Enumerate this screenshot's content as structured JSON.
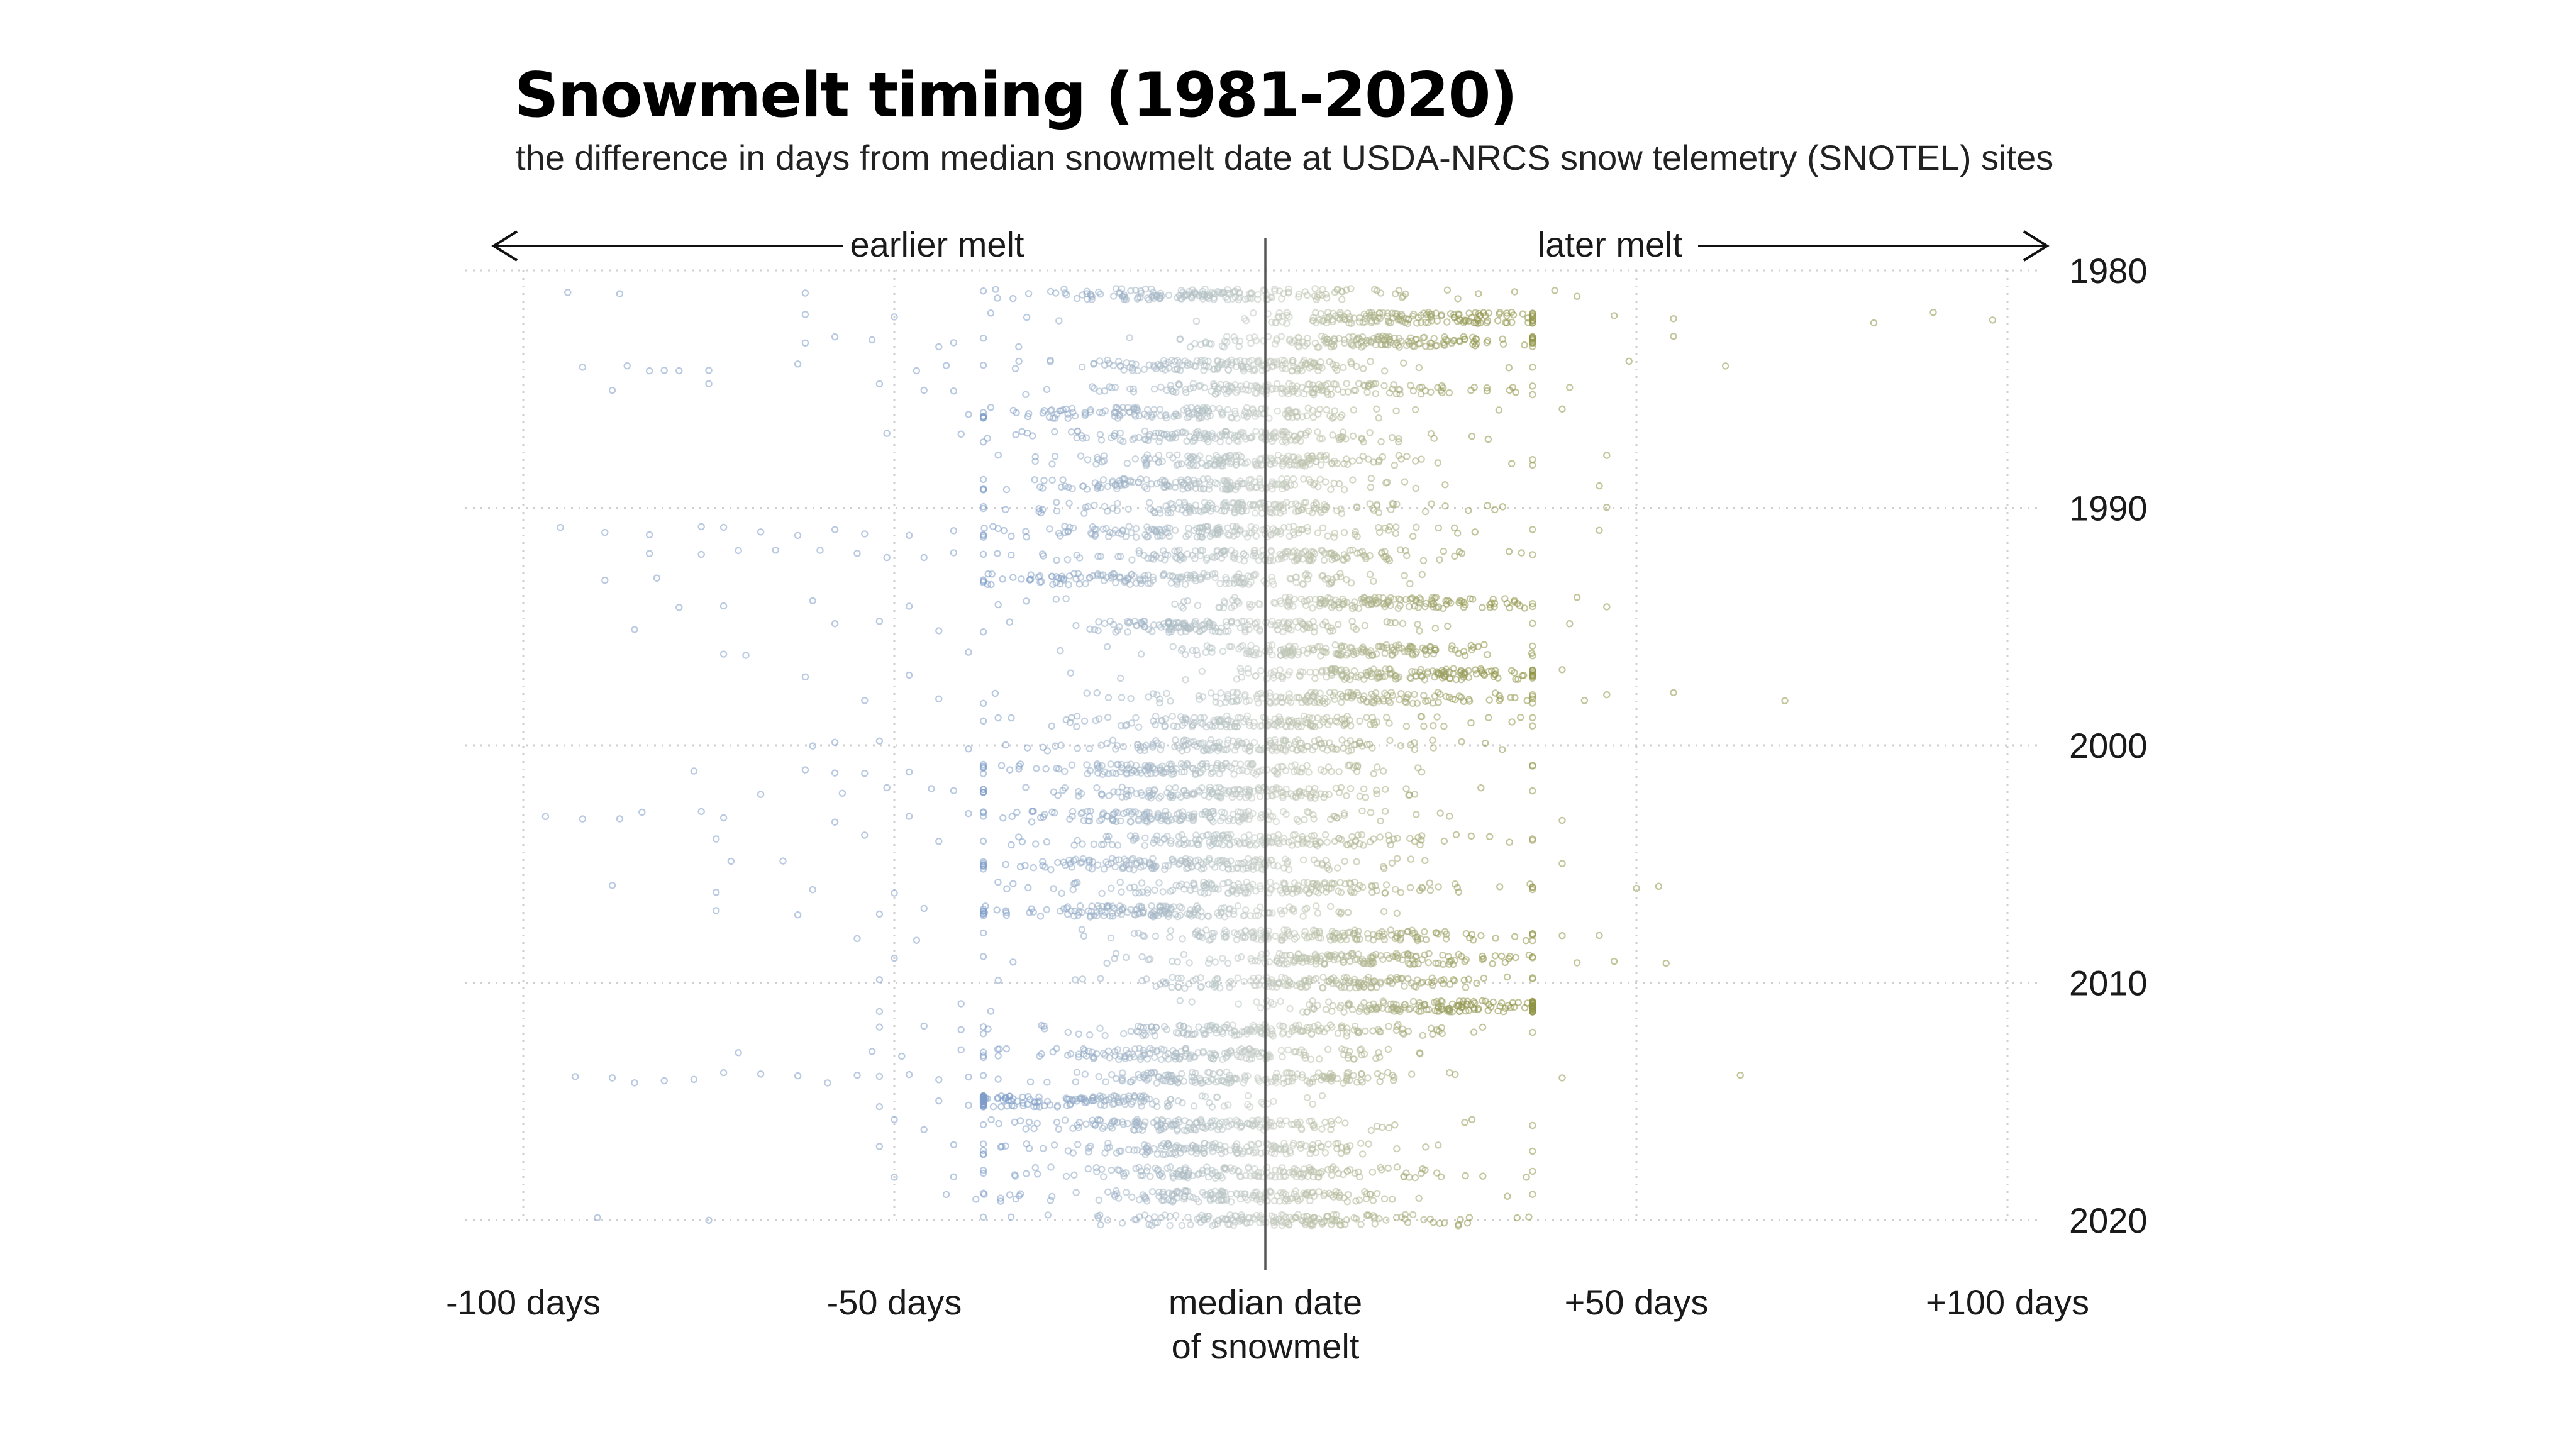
{
  "chart_data": {
    "type": "scatter",
    "title": "Snowmelt timing (1981-2020)",
    "subtitle": "the difference in days from median snowmelt date at USDA-NRCS snow telemetry (SNOTEL) sites",
    "x_tick_labels": [
      "-100 days",
      "-50 days",
      "median date of snowmelt",
      "+50 days",
      "+100 days"
    ],
    "x_ticks": [
      -100,
      -50,
      0,
      50,
      100
    ],
    "xlim": [
      -100,
      100
    ],
    "y_tick_labels": [
      "1980",
      "1990",
      "2000",
      "2010",
      "2020"
    ],
    "y_ticks": [
      1980,
      1990,
      2000,
      2010,
      2020
    ],
    "ylim": [
      1980,
      2020
    ],
    "grid": true,
    "annotations": {
      "earlier": "earlier melt",
      "later": "later melt"
    },
    "colors": {
      "earlier": "#7d9cc8",
      "median": "#c6cdc4",
      "later": "#8f9346",
      "median_line": "#555555",
      "grid": "#cfcfcf"
    },
    "series": [
      {
        "name": "",
        "years": [
          1981,
          1982,
          1983,
          1984,
          1985,
          1986,
          1987,
          1988,
          1989,
          1990,
          1991,
          1992,
          1993,
          1994,
          1995,
          1996,
          1997,
          1998,
          1999,
          2000,
          2001,
          2002,
          2003,
          2004,
          2005,
          2006,
          2007,
          2008,
          2009,
          2010,
          2011,
          2012,
          2013,
          2014,
          2015,
          2016,
          2017,
          2018,
          2019,
          2020
        ],
        "center_days": [
          -6,
          18,
          14,
          -4,
          2,
          -10,
          -5,
          -3,
          -8,
          -4,
          -8,
          -2,
          -12,
          12,
          -5,
          10,
          16,
          8,
          2,
          -2,
          -10,
          -4,
          -12,
          -1,
          -8,
          0,
          -14,
          6,
          10,
          8,
          22,
          -2,
          -8,
          -4,
          -24,
          -10,
          -6,
          -2,
          -2,
          2
        ],
        "outliers": [
          {
            "year": 1981,
            "days": -94
          },
          {
            "year": 1981,
            "days": -87
          },
          {
            "year": 1981,
            "days": -62
          },
          {
            "year": 1981,
            "days": -34
          },
          {
            "year": 1981,
            "days": -27
          },
          {
            "year": 1981,
            "days": -24
          },
          {
            "year": 1981,
            "days": 39
          },
          {
            "year": 1981,
            "days": 42
          },
          {
            "year": 1982,
            "days": -62
          },
          {
            "year": 1982,
            "days": -50
          },
          {
            "year": 1982,
            "days": -37
          },
          {
            "year": 1982,
            "days": 47
          },
          {
            "year": 1982,
            "days": 55
          },
          {
            "year": 1982,
            "days": 82
          },
          {
            "year": 1982,
            "days": 90
          },
          {
            "year": 1982,
            "days": 98
          },
          {
            "year": 1983,
            "days": -62
          },
          {
            "year": 1983,
            "days": -58
          },
          {
            "year": 1983,
            "days": -53
          },
          {
            "year": 1983,
            "days": -44
          },
          {
            "year": 1983,
            "days": -42
          },
          {
            "year": 1983,
            "days": -38
          },
          {
            "year": 1983,
            "days": 55
          },
          {
            "year": 1984,
            "days": -92
          },
          {
            "year": 1984,
            "days": -86
          },
          {
            "year": 1984,
            "days": -83
          },
          {
            "year": 1984,
            "days": -81
          },
          {
            "year": 1984,
            "days": -79
          },
          {
            "year": 1984,
            "days": -75
          },
          {
            "year": 1984,
            "days": -63
          },
          {
            "year": 1984,
            "days": -47
          },
          {
            "year": 1984,
            "days": -43
          },
          {
            "year": 1984,
            "days": 49
          },
          {
            "year": 1984,
            "days": 62
          },
          {
            "year": 1985,
            "days": -88
          },
          {
            "year": 1985,
            "days": -75
          },
          {
            "year": 1985,
            "days": -52
          },
          {
            "year": 1985,
            "days": -46
          },
          {
            "year": 1985,
            "days": -42
          },
          {
            "year": 1985,
            "days": 41
          },
          {
            "year": 1986,
            "days": -40
          },
          {
            "year": 1986,
            "days": -37
          },
          {
            "year": 1986,
            "days": -32
          },
          {
            "year": 1986,
            "days": 40
          },
          {
            "year": 1987,
            "days": -51
          },
          {
            "year": 1987,
            "days": -41
          },
          {
            "year": 1988,
            "days": -36
          },
          {
            "year": 1988,
            "days": -31
          },
          {
            "year": 1988,
            "days": 46
          },
          {
            "year": 1989,
            "days": -30
          },
          {
            "year": 1989,
            "days": -27
          },
          {
            "year": 1989,
            "days": 45
          },
          {
            "year": 1990,
            "days": -38
          },
          {
            "year": 1990,
            "days": -30
          },
          {
            "year": 1990,
            "days": 46
          },
          {
            "year": 1991,
            "days": -95
          },
          {
            "year": 1991,
            "days": -89
          },
          {
            "year": 1991,
            "days": -83
          },
          {
            "year": 1991,
            "days": -76
          },
          {
            "year": 1991,
            "days": -73
          },
          {
            "year": 1991,
            "days": -68
          },
          {
            "year": 1991,
            "days": -63
          },
          {
            "year": 1991,
            "days": -58
          },
          {
            "year": 1991,
            "days": -54
          },
          {
            "year": 1991,
            "days": -48
          },
          {
            "year": 1991,
            "days": -42
          },
          {
            "year": 1991,
            "days": -36
          },
          {
            "year": 1991,
            "days": 45
          },
          {
            "year": 1992,
            "days": -83
          },
          {
            "year": 1992,
            "days": -76
          },
          {
            "year": 1992,
            "days": -71
          },
          {
            "year": 1992,
            "days": -66
          },
          {
            "year": 1992,
            "days": -60
          },
          {
            "year": 1992,
            "days": -55
          },
          {
            "year": 1992,
            "days": -51
          },
          {
            "year": 1992,
            "days": -46
          },
          {
            "year": 1992,
            "days": -42
          },
          {
            "year": 1993,
            "days": -89
          },
          {
            "year": 1993,
            "days": -82
          },
          {
            "year": 1993,
            "days": -34
          },
          {
            "year": 1994,
            "days": -79
          },
          {
            "year": 1994,
            "days": -73
          },
          {
            "year": 1994,
            "days": -61
          },
          {
            "year": 1994,
            "days": -48
          },
          {
            "year": 1994,
            "days": -36
          },
          {
            "year": 1994,
            "days": 42
          },
          {
            "year": 1994,
            "days": 46
          },
          {
            "year": 1995,
            "days": -85
          },
          {
            "year": 1995,
            "days": -58
          },
          {
            "year": 1995,
            "days": -52
          },
          {
            "year": 1995,
            "days": -44
          },
          {
            "year": 1995,
            "days": 41
          },
          {
            "year": 1996,
            "days": -73
          },
          {
            "year": 1996,
            "days": -70
          },
          {
            "year": 1996,
            "days": -40
          },
          {
            "year": 1997,
            "days": -62
          },
          {
            "year": 1997,
            "days": -48
          },
          {
            "year": 1997,
            "days": 40
          },
          {
            "year": 1998,
            "days": -54
          },
          {
            "year": 1998,
            "days": -44
          },
          {
            "year": 1998,
            "days": 43
          },
          {
            "year": 1998,
            "days": 46
          },
          {
            "year": 1998,
            "days": 55
          },
          {
            "year": 1998,
            "days": 70
          },
          {
            "year": 2000,
            "days": -61
          },
          {
            "year": 2000,
            "days": -58
          },
          {
            "year": 2000,
            "days": -52
          },
          {
            "year": 2000,
            "days": -40
          },
          {
            "year": 2000,
            "days": -35
          },
          {
            "year": 2001,
            "days": -77
          },
          {
            "year": 2001,
            "days": -62
          },
          {
            "year": 2001,
            "days": -58
          },
          {
            "year": 2001,
            "days": -54
          },
          {
            "year": 2001,
            "days": -48
          },
          {
            "year": 2001,
            "days": -38
          },
          {
            "year": 2002,
            "days": -68
          },
          {
            "year": 2002,
            "days": -57
          },
          {
            "year": 2002,
            "days": -51
          },
          {
            "year": 2002,
            "days": -45
          },
          {
            "year": 2002,
            "days": -42
          },
          {
            "year": 2003,
            "days": -97
          },
          {
            "year": 2003,
            "days": -92
          },
          {
            "year": 2003,
            "days": -87
          },
          {
            "year": 2003,
            "days": -84
          },
          {
            "year": 2003,
            "days": -76
          },
          {
            "year": 2003,
            "days": -73
          },
          {
            "year": 2003,
            "days": -58
          },
          {
            "year": 2003,
            "days": -48
          },
          {
            "year": 2003,
            "days": -40
          },
          {
            "year": 2003,
            "days": 40
          },
          {
            "year": 2004,
            "days": -74
          },
          {
            "year": 2004,
            "days": -54
          },
          {
            "year": 2004,
            "days": -44
          },
          {
            "year": 2005,
            "days": -72
          },
          {
            "year": 2005,
            "days": -65
          },
          {
            "year": 2005,
            "days": -35
          },
          {
            "year": 2005,
            "days": 40
          },
          {
            "year": 2006,
            "days": -88
          },
          {
            "year": 2006,
            "days": -74
          },
          {
            "year": 2006,
            "days": -61
          },
          {
            "year": 2006,
            "days": -50
          },
          {
            "year": 2006,
            "days": -34
          },
          {
            "year": 2006,
            "days": 50
          },
          {
            "year": 2006,
            "days": 53
          },
          {
            "year": 2007,
            "days": -74
          },
          {
            "year": 2007,
            "days": -63
          },
          {
            "year": 2007,
            "days": -52
          },
          {
            "year": 2007,
            "days": -46
          },
          {
            "year": 2008,
            "days": -55
          },
          {
            "year": 2008,
            "days": -47
          },
          {
            "year": 2008,
            "days": -38
          },
          {
            "year": 2008,
            "days": 40
          },
          {
            "year": 2008,
            "days": 45
          },
          {
            "year": 2009,
            "days": -50
          },
          {
            "year": 2009,
            "days": -38
          },
          {
            "year": 2009,
            "days": -34
          },
          {
            "year": 2009,
            "days": 42
          },
          {
            "year": 2009,
            "days": 47
          },
          {
            "year": 2009,
            "days": 54
          },
          {
            "year": 2010,
            "days": -52
          },
          {
            "year": 2010,
            "days": -36
          },
          {
            "year": 2011,
            "days": -52
          },
          {
            "year": 2011,
            "days": -41
          },
          {
            "year": 2011,
            "days": -37
          },
          {
            "year": 2012,
            "days": -52
          },
          {
            "year": 2012,
            "days": -46
          },
          {
            "year": 2012,
            "days": -41
          },
          {
            "year": 2013,
            "days": -71
          },
          {
            "year": 2013,
            "days": -53
          },
          {
            "year": 2013,
            "days": -49
          },
          {
            "year": 2013,
            "days": -41
          },
          {
            "year": 2013,
            "days": -36
          },
          {
            "year": 2014,
            "days": -93
          },
          {
            "year": 2014,
            "days": -88
          },
          {
            "year": 2014,
            "days": -85
          },
          {
            "year": 2014,
            "days": -81
          },
          {
            "year": 2014,
            "days": -77
          },
          {
            "year": 2014,
            "days": -73
          },
          {
            "year": 2014,
            "days": -68
          },
          {
            "year": 2014,
            "days": -63
          },
          {
            "year": 2014,
            "days": -59
          },
          {
            "year": 2014,
            "days": -55
          },
          {
            "year": 2014,
            "days": -52
          },
          {
            "year": 2014,
            "days": -48
          },
          {
            "year": 2014,
            "days": -44
          },
          {
            "year": 2014,
            "days": -40
          },
          {
            "year": 2014,
            "days": -36
          },
          {
            "year": 2014,
            "days": 40
          },
          {
            "year": 2014,
            "days": 64
          },
          {
            "year": 2015,
            "days": -52
          },
          {
            "year": 2015,
            "days": -44
          },
          {
            "year": 2015,
            "days": -40
          },
          {
            "year": 2016,
            "days": -50
          },
          {
            "year": 2016,
            "days": -46
          },
          {
            "year": 2017,
            "days": -52
          },
          {
            "year": 2017,
            "days": -42
          },
          {
            "year": 2018,
            "days": -50
          },
          {
            "year": 2018,
            "days": -42
          },
          {
            "year": 2018,
            "days": -38
          },
          {
            "year": 2019,
            "days": -43
          },
          {
            "year": 2019,
            "days": -39
          },
          {
            "year": 2019,
            "days": -33
          },
          {
            "year": 2020,
            "days": -90
          },
          {
            "year": 2020,
            "days": -75
          }
        ]
      }
    ]
  }
}
